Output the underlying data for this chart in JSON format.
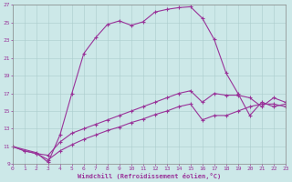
{
  "xlabel": "Windchill (Refroidissement éolien,°C)",
  "bg_color": "#cce8e8",
  "grid_color": "#aacccc",
  "line_color": "#993399",
  "xlim_min": 0,
  "xlim_max": 23,
  "ylim_min": 9,
  "ylim_max": 27,
  "yticks": [
    9,
    11,
    13,
    15,
    17,
    19,
    21,
    23,
    25,
    27
  ],
  "xticks": [
    0,
    1,
    2,
    3,
    4,
    5,
    6,
    7,
    8,
    9,
    10,
    11,
    12,
    13,
    14,
    15,
    16,
    17,
    18,
    19,
    20,
    21,
    22,
    23
  ],
  "series": [
    {
      "x": [
        0,
        2,
        3,
        4,
        5,
        6,
        7,
        8,
        9,
        10,
        11,
        12,
        13,
        14,
        15,
        16,
        17,
        18,
        19,
        20,
        21,
        22,
        23
      ],
      "y": [
        11.0,
        10.3,
        9.2,
        12.3,
        17.0,
        21.5,
        23.3,
        24.8,
        25.2,
        24.7,
        25.1,
        26.2,
        26.5,
        26.7,
        26.8,
        25.5,
        23.1,
        19.3,
        17.0,
        14.5,
        16.0,
        15.5,
        15.8
      ]
    },
    {
      "x": [
        0,
        1,
        2,
        3,
        4,
        5,
        6,
        7,
        8,
        9,
        10,
        11,
        12,
        13,
        14,
        15,
        16,
        17,
        18,
        19,
        20,
        21,
        22,
        23
      ],
      "y": [
        11.0,
        10.5,
        10.2,
        10.0,
        11.5,
        12.5,
        13.0,
        13.5,
        14.0,
        14.5,
        15.0,
        15.5,
        16.0,
        16.5,
        17.0,
        17.3,
        16.0,
        17.0,
        16.8,
        16.8,
        16.5,
        15.5,
        16.5,
        16.0
      ]
    },
    {
      "x": [
        0,
        1,
        2,
        3,
        4,
        5,
        6,
        7,
        8,
        9,
        10,
        11,
        12,
        13,
        14,
        15,
        16,
        17,
        18,
        19,
        20,
        21,
        22,
        23
      ],
      "y": [
        11.0,
        10.5,
        10.2,
        9.5,
        10.5,
        11.2,
        11.8,
        12.3,
        12.8,
        13.2,
        13.7,
        14.1,
        14.6,
        15.0,
        15.5,
        15.8,
        14.0,
        14.5,
        14.5,
        15.0,
        15.5,
        15.8,
        15.8,
        15.5
      ]
    }
  ]
}
